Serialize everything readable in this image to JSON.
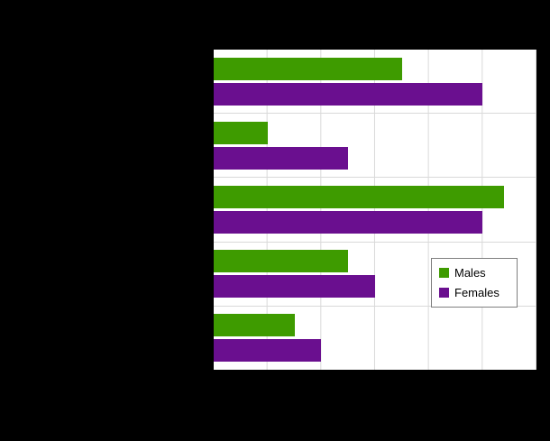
{
  "page": {
    "background_color": "#000000",
    "plot_background_color": "#ffffff",
    "gridline_color": "#d9d9d9"
  },
  "legend": {
    "position": "middle-right-inside-plot",
    "items": [
      {
        "label": "Males",
        "color": "#3e9b00"
      },
      {
        "label": "Females",
        "color": "#6a0f8f"
      }
    ]
  },
  "chart_data": {
    "type": "bar",
    "orientation": "horizontal",
    "title": "",
    "xlabel": "",
    "ylabel": "",
    "categories": [
      "",
      "",
      "",
      "",
      ""
    ],
    "series": [
      {
        "name": "Males",
        "color": "#3e9b00",
        "values": [
          35,
          10,
          54,
          25,
          15
        ]
      },
      {
        "name": "Females",
        "color": "#6a0f8f",
        "values": [
          50,
          25,
          50,
          30,
          20
        ]
      }
    ],
    "xlim": [
      0,
      60
    ],
    "x_tick_interval": 10,
    "grid": "vertical",
    "legend_position": "middle-right"
  }
}
